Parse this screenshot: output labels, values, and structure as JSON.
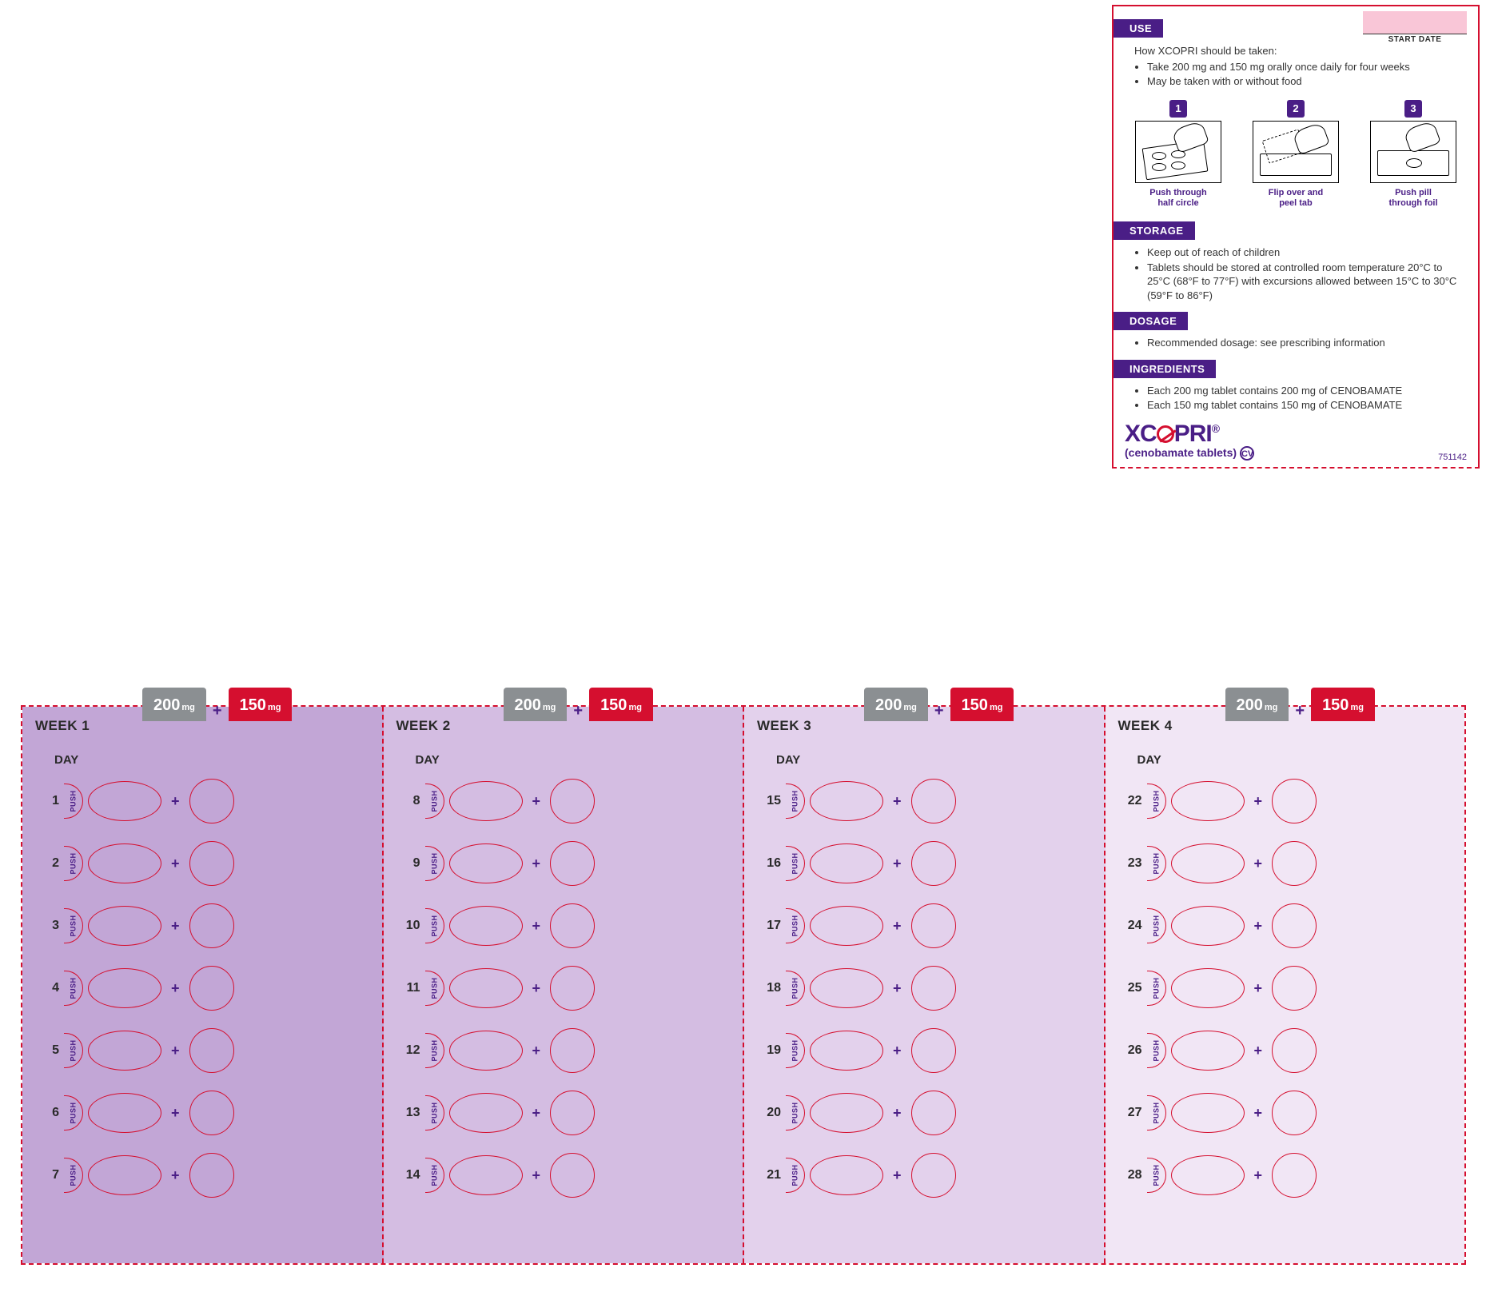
{
  "start_date_label": "START DATE",
  "sections": {
    "use": {
      "title": "USE",
      "intro": "How XCOPRI should be taken:",
      "bullets": [
        "Take 200 mg and 150 mg orally once daily for four weeks",
        "May be taken with or without food"
      ]
    },
    "storage": {
      "title": "STORAGE",
      "bullets": [
        "Keep out of reach of children",
        "Tablets should be stored at controlled room temperature 20°C to 25°C (68°F to 77°F) with excursions allowed between 15°C to 30°C (59°F to 86°F)"
      ]
    },
    "dosage": {
      "title": "DOSAGE",
      "bullets": [
        "Recommended dosage: see prescribing information"
      ]
    },
    "ingredients": {
      "title": "INGREDIENTS",
      "bullets": [
        "Each 200 mg tablet contains 200 mg of CENOBAMATE",
        "Each 150 mg tablet contains 150 mg of CENOBAMATE"
      ]
    }
  },
  "steps": [
    {
      "num": "1",
      "caption_l1": "Push through",
      "caption_l2": "half circle"
    },
    {
      "num": "2",
      "caption_l1": "Flip over and",
      "caption_l2": "peel tab"
    },
    {
      "num": "3",
      "caption_l1": "Push pill",
      "caption_l2": "through foil"
    }
  ],
  "brand": {
    "name_before_o": "XC",
    "name_after_o": "PRI",
    "reg": "®",
    "subtitle": "(cenobamate tablets)",
    "cv": "CV"
  },
  "code_number": "751142",
  "dose_200": "200",
  "dose_150": "150",
  "mg": "mg",
  "plus": "+",
  "push": "PUSH",
  "day_heading": "DAY",
  "weeks": [
    {
      "title": "WEEK 1",
      "class": "wk1",
      "days": [
        1,
        2,
        3,
        4,
        5,
        6,
        7
      ]
    },
    {
      "title": "WEEK 2",
      "class": "wk2",
      "days": [
        8,
        9,
        10,
        11,
        12,
        13,
        14
      ]
    },
    {
      "title": "WEEK 3",
      "class": "wk3",
      "days": [
        15,
        16,
        17,
        18,
        19,
        20,
        21
      ]
    },
    {
      "title": "WEEK 4",
      "class": "wk4",
      "days": [
        22,
        23,
        24,
        25,
        26,
        27,
        28
      ]
    }
  ],
  "colors": {
    "purple": "#4a1e86",
    "red": "#d50f2f",
    "grey": "#8b8f92",
    "pink": "#f9c6d7",
    "wk1": "#c2a6d6",
    "wk2": "#d4bde2",
    "wk3": "#e3d1ec",
    "wk4": "#f1e6f5"
  }
}
